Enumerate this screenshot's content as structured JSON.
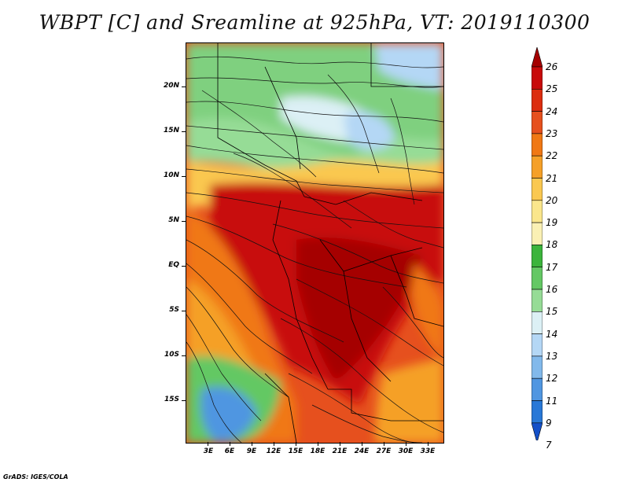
{
  "title": "WBPT [C] and Sreamline at 925hPa, VT: 2019110300",
  "footer": "GrADS: IGES/COLA",
  "lat_labels": [
    "20N",
    "15N",
    "10N",
    "5N",
    "EQ",
    "5S",
    "10S",
    "15S"
  ],
  "lon_labels": [
    "3E",
    "6E",
    "9E",
    "12E",
    "15E",
    "18E",
    "21E",
    "24E",
    "27E",
    "30E",
    "33E"
  ],
  "colorbar": {
    "labels": [
      "26",
      "25",
      "24",
      "23",
      "22",
      "21",
      "20",
      "19",
      "18",
      "17",
      "16",
      "15",
      "14",
      "13",
      "12",
      "11",
      "9",
      "7"
    ],
    "colors": [
      "#a50000",
      "#c80a0a",
      "#dc2d0f",
      "#e6501e",
      "#f07814",
      "#f5a028",
      "#fac850",
      "#fae68c",
      "#faf0b4",
      "#3cb43c",
      "#64c864",
      "#96dc96",
      "#dcf0f5",
      "#b4d7f5",
      "#82b9eb",
      "#5096e1",
      "#2878d7",
      "#1450c8"
    ]
  }
}
